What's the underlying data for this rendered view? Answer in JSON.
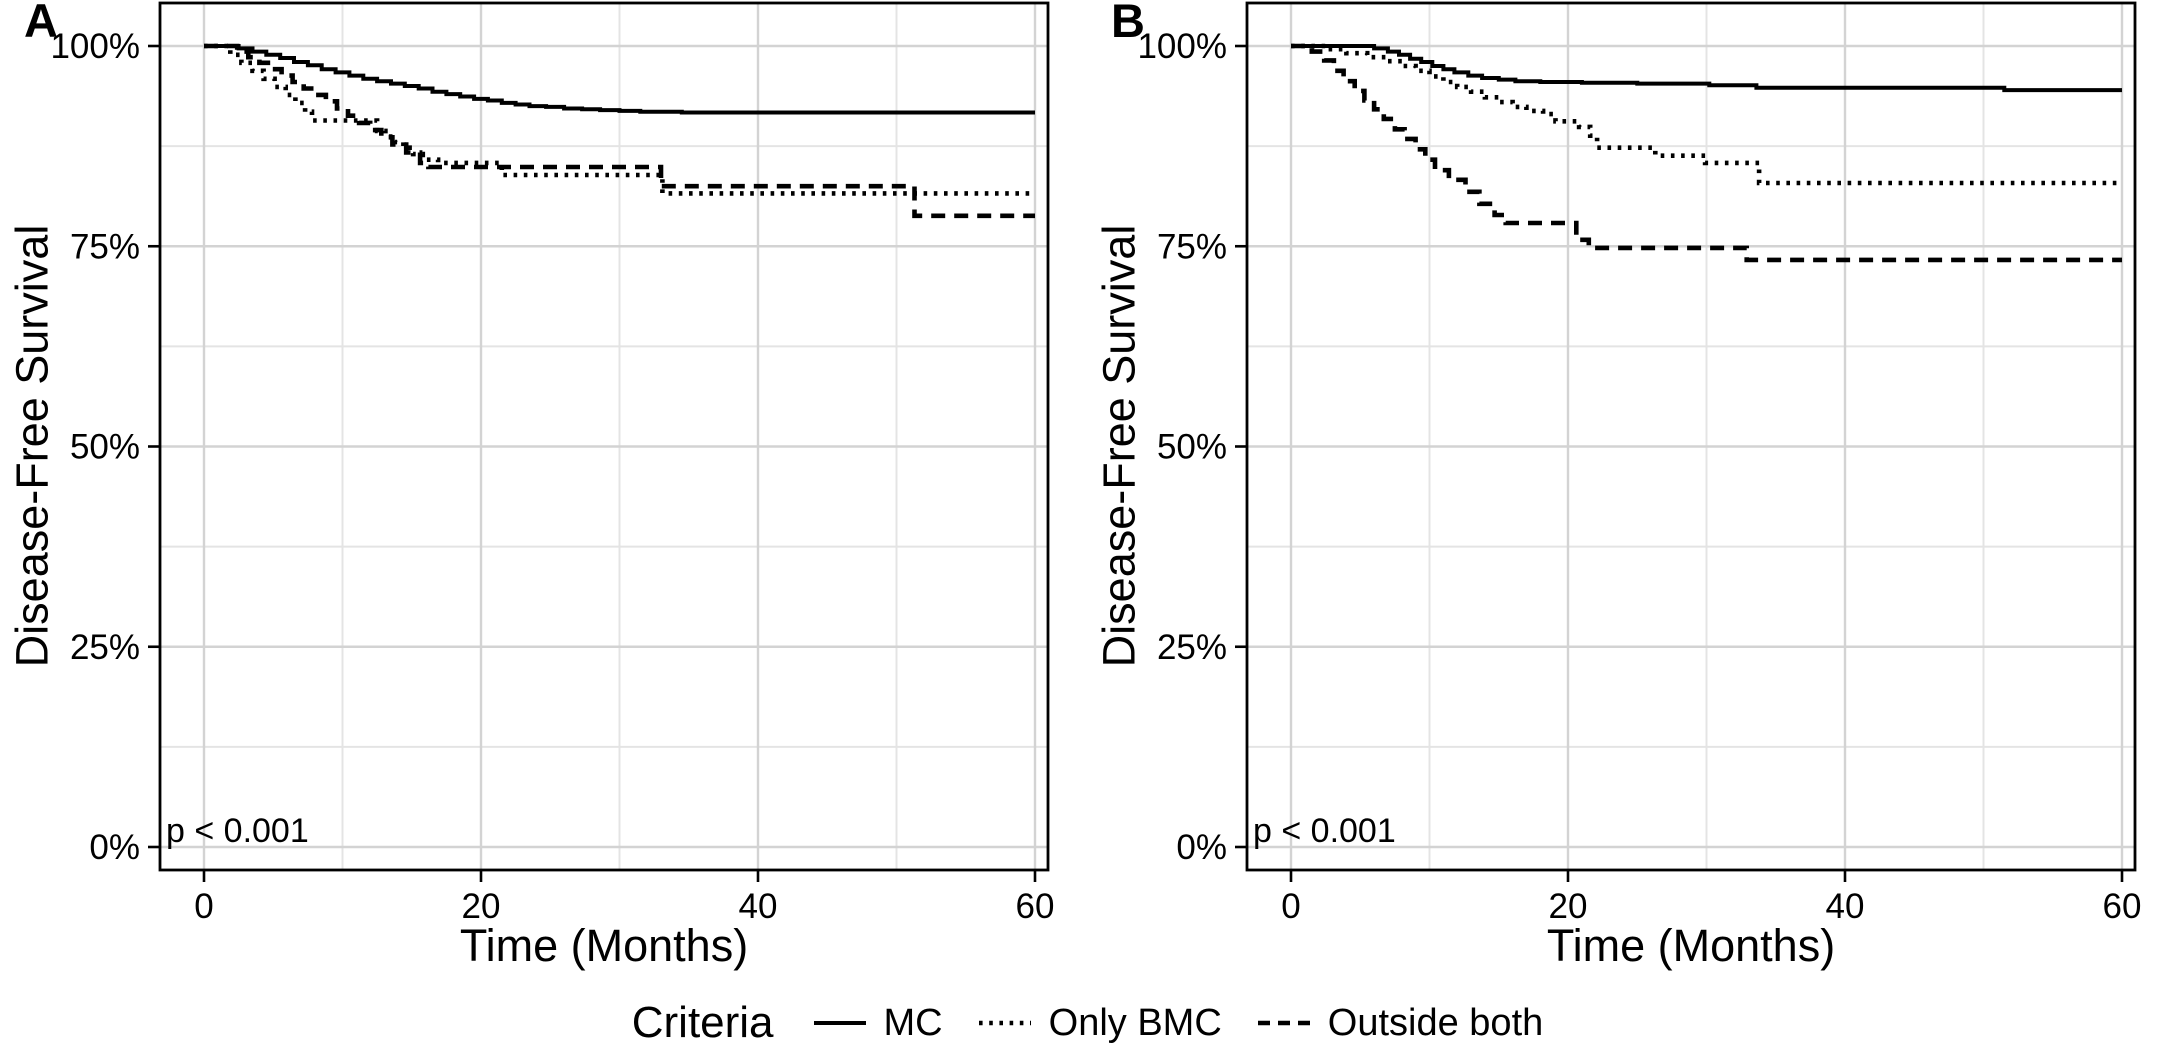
{
  "figure": {
    "background": "#ffffff"
  },
  "colors": {
    "line": "#000000",
    "grid_major": "#d3d3d3",
    "grid_minor": "#e4e4e4",
    "panel_border": "#000000",
    "text": "#000000"
  },
  "panels": [
    {
      "letter": "A"
    },
    {
      "letter": "B"
    }
  ],
  "legend": {
    "title": "Criteria",
    "position": "bottom",
    "items": [
      {
        "label": "MC",
        "line_style": "solid"
      },
      {
        "label": "Only BMC",
        "line_style": "dotted"
      },
      {
        "label": "Outside both",
        "line_style": "dashed"
      }
    ]
  },
  "chart_data": [
    {
      "panel": "A",
      "type": "line",
      "step": true,
      "title": "",
      "xlabel": "Time (Months)",
      "ylabel": "Disease-Free Survival",
      "annotation": "p < 0.001",
      "xlim": [
        0,
        60
      ],
      "ylim": [
        0,
        100
      ],
      "grid": true,
      "x_ticks": [
        {
          "value": 0,
          "label": "0"
        },
        {
          "value": 20,
          "label": "20"
        },
        {
          "value": 40,
          "label": "40"
        },
        {
          "value": 60,
          "label": "60"
        }
      ],
      "y_ticks": [
        {
          "value": 0,
          "label": "0%"
        },
        {
          "value": 25,
          "label": "25%"
        },
        {
          "value": 50,
          "label": "50%"
        },
        {
          "value": 75,
          "label": "75%"
        },
        {
          "value": 100,
          "label": "100%"
        }
      ],
      "x_minor": [
        10,
        30,
        50
      ],
      "y_minor": [
        12.5,
        37.5,
        62.5,
        87.5
      ],
      "series": [
        {
          "name": "MC",
          "line_style": "solid",
          "points": [
            [
              0,
              100
            ],
            [
              2.5,
              99.7
            ],
            [
              3.5,
              99.3
            ],
            [
              4.5,
              98.9
            ],
            [
              5.5,
              98.5
            ],
            [
              6.5,
              98.0
            ],
            [
              7.5,
              97.6
            ],
            [
              8.5,
              97.1
            ],
            [
              9.5,
              96.7
            ],
            [
              10.5,
              96.3
            ],
            [
              11.5,
              95.9
            ],
            [
              12.5,
              95.6
            ],
            [
              13.5,
              95.3
            ],
            [
              14.5,
              95.0
            ],
            [
              15.5,
              94.7
            ],
            [
              16.5,
              94.3
            ],
            [
              17.5,
              94.0
            ],
            [
              18.5,
              93.7
            ],
            [
              19.5,
              93.4
            ],
            [
              20.5,
              93.2
            ],
            [
              21.5,
              92.9
            ],
            [
              22.5,
              92.7
            ],
            [
              23.5,
              92.5
            ],
            [
              24.7,
              92.4
            ],
            [
              26,
              92.2
            ],
            [
              27.3,
              92.1
            ],
            [
              28.6,
              92.0
            ],
            [
              30,
              91.9
            ],
            [
              31.5,
              91.8
            ],
            [
              33,
              91.8
            ],
            [
              34.5,
              91.7
            ],
            [
              60,
              91.7
            ]
          ]
        },
        {
          "name": "Only BMC",
          "line_style": "dotted",
          "points": [
            [
              0,
              100
            ],
            [
              1.9,
              98.9
            ],
            [
              2.7,
              97.9
            ],
            [
              3.5,
              96.9
            ],
            [
              4.3,
              95.9
            ],
            [
              5.1,
              94.9
            ],
            [
              5.9,
              93.9
            ],
            [
              6.6,
              92.9
            ],
            [
              7.3,
              91.8
            ],
            [
              7.8,
              90.7
            ],
            [
              12.5,
              89.4
            ],
            [
              13.1,
              88.7
            ],
            [
              13.8,
              88.0
            ],
            [
              14.4,
              87.3
            ],
            [
              15.1,
              86.5
            ],
            [
              15.8,
              85.8
            ],
            [
              16.9,
              85.4
            ],
            [
              21.5,
              83.9
            ],
            [
              33.1,
              81.6
            ],
            [
              60,
              81.6
            ]
          ]
        },
        {
          "name": "Outside both",
          "line_style": "dashed",
          "points": [
            [
              0,
              100
            ],
            [
              2.4,
              99.3
            ],
            [
              3.2,
              98.6
            ],
            [
              4.0,
              97.9
            ],
            [
              4.8,
              97.1
            ],
            [
              5.6,
              96.3
            ],
            [
              6.4,
              95.5
            ],
            [
              7.2,
              94.7
            ],
            [
              8.0,
              93.9
            ],
            [
              8.8,
              93.1
            ],
            [
              9.6,
              92.2
            ],
            [
              10.4,
              91.3
            ],
            [
              11.2,
              90.4
            ],
            [
              12.0,
              89.5
            ],
            [
              12.8,
              88.6
            ],
            [
              13.6,
              87.7
            ],
            [
              14.6,
              86.7
            ],
            [
              15.6,
              85.4
            ],
            [
              16.2,
              84.9
            ],
            [
              33,
              82.5
            ],
            [
              51.3,
              78.8
            ],
            [
              60,
              78.8
            ]
          ]
        }
      ]
    },
    {
      "panel": "B",
      "type": "line",
      "step": true,
      "title": "",
      "xlabel": "Time (Months)",
      "ylabel": "Disease-Free Survival",
      "annotation": "p < 0.001",
      "xlim": [
        0,
        60
      ],
      "ylim": [
        0,
        100
      ],
      "grid": true,
      "x_ticks": [
        {
          "value": 0,
          "label": "0"
        },
        {
          "value": 20,
          "label": "20"
        },
        {
          "value": 40,
          "label": "40"
        },
        {
          "value": 60,
          "label": "60"
        }
      ],
      "y_ticks": [
        {
          "value": 0,
          "label": "0%"
        },
        {
          "value": 25,
          "label": "25%"
        },
        {
          "value": 50,
          "label": "50%"
        },
        {
          "value": 75,
          "label": "75%"
        },
        {
          "value": 100,
          "label": "100%"
        }
      ],
      "x_minor": [
        10,
        30,
        50
      ],
      "y_minor": [
        12.5,
        37.5,
        62.5,
        87.5
      ],
      "series": [
        {
          "name": "MC",
          "line_style": "solid",
          "points": [
            [
              0,
              100
            ],
            [
              6,
              99.7
            ],
            [
              7,
              99.3
            ],
            [
              7.8,
              98.9
            ],
            [
              8.6,
              98.4
            ],
            [
              9.4,
              98.0
            ],
            [
              10.2,
              97.5
            ],
            [
              11,
              97.1
            ],
            [
              11.8,
              96.7
            ],
            [
              12.8,
              96.3
            ],
            [
              13.8,
              96.0
            ],
            [
              15,
              95.8
            ],
            [
              16.2,
              95.6
            ],
            [
              18,
              95.5
            ],
            [
              21,
              95.4
            ],
            [
              25,
              95.3
            ],
            [
              30.2,
              95.1
            ],
            [
              33.6,
              94.8
            ],
            [
              51.5,
              94.5
            ],
            [
              60,
              94.5
            ]
          ]
        },
        {
          "name": "Only BMC",
          "line_style": "dotted",
          "points": [
            [
              0,
              100
            ],
            [
              2.5,
              99.6
            ],
            [
              4,
              99.1
            ],
            [
              5.5,
              98.6
            ],
            [
              7,
              98.1
            ],
            [
              8,
              97.5
            ],
            [
              9,
              96.9
            ],
            [
              10,
              96.2
            ],
            [
              11,
              95.5
            ],
            [
              12,
              94.9
            ],
            [
              13,
              94.3
            ],
            [
              14,
              93.6
            ],
            [
              15,
              93.0
            ],
            [
              16,
              92.4
            ],
            [
              17,
              91.9
            ],
            [
              18.2,
              91.5
            ],
            [
              19.1,
              90.6
            ],
            [
              20.8,
              89.9
            ],
            [
              21.6,
              88.8
            ],
            [
              22.1,
              87.3
            ],
            [
              26.3,
              86.3
            ],
            [
              29.9,
              85.4
            ],
            [
              33.8,
              82.9
            ],
            [
              60,
              82.9
            ]
          ]
        },
        {
          "name": "Outside both",
          "line_style": "dashed",
          "points": [
            [
              0,
              100
            ],
            [
              1.5,
              99.3
            ],
            [
              2.4,
              98.2
            ],
            [
              3.1,
              96.9
            ],
            [
              3.8,
              95.6
            ],
            [
              4.6,
              94.4
            ],
            [
              5.3,
              93.2
            ],
            [
              6,
              92.1
            ],
            [
              6.7,
              90.9
            ],
            [
              7.5,
              89.6
            ],
            [
              8.2,
              88.4
            ],
            [
              9,
              87.1
            ],
            [
              9.7,
              85.8
            ],
            [
              10.4,
              84.5
            ],
            [
              11.4,
              83.3
            ],
            [
              12.6,
              81.8
            ],
            [
              13.6,
              80.3
            ],
            [
              14.7,
              78.9
            ],
            [
              15.5,
              77.9
            ],
            [
              20.6,
              75.8
            ],
            [
              21.5,
              74.8
            ],
            [
              32.9,
              73.3
            ],
            [
              60,
              73.3
            ]
          ]
        }
      ]
    }
  ]
}
